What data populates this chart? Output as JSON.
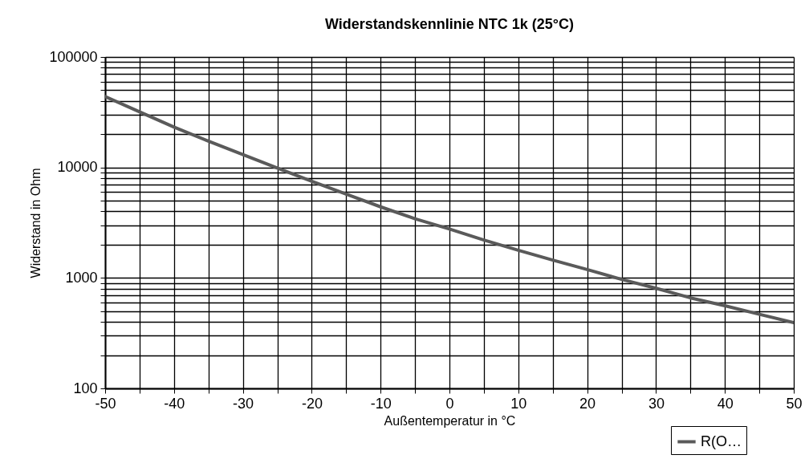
{
  "chart_data": {
    "type": "line",
    "title": "Widerstandskennlinie NTC 1k (25°C)",
    "xlabel": "Außentemperatur in °C",
    "ylabel": "Widerstand in Ohm",
    "x": [
      -50,
      -45,
      -40,
      -35,
      -30,
      -25,
      -20,
      -15,
      -10,
      -5,
      0,
      5,
      10,
      15,
      20,
      25,
      30,
      35,
      40,
      45,
      50
    ],
    "series": [
      {
        "name": "R(O…",
        "color": "#5a5a5a",
        "values": [
          43900,
          31900,
          23200,
          17300,
          13100,
          9900,
          7500,
          5730,
          4400,
          3430,
          2770,
          2200,
          1780,
          1450,
          1190,
          970,
          805,
          660,
          560,
          469,
          394
        ]
      }
    ],
    "xlim": [
      -50,
      50
    ],
    "xticks": [
      -50,
      {
        "value": -45,
        "label": null
      },
      -40,
      {
        "value": -35,
        "label": null
      },
      -30,
      {
        "value": -25,
        "label": null
      },
      -20,
      {
        "value": -15,
        "label": null
      },
      -10,
      {
        "value": -5,
        "label": null
      },
      0,
      {
        "value": 5,
        "label": null
      },
      10,
      {
        "value": 15,
        "label": null
      },
      20,
      {
        "value": 25,
        "label": null
      },
      30,
      {
        "value": 35,
        "label": null
      },
      40,
      {
        "value": 45,
        "label": null
      },
      50
    ],
    "ylim": [
      100,
      100000
    ],
    "yticks": [
      100,
      {
        "value": 200,
        "label": null
      },
      {
        "value": 300,
        "label": null
      },
      {
        "value": 400,
        "label": null
      },
      {
        "value": 500,
        "label": null
      },
      {
        "value": 600,
        "label": null
      },
      {
        "value": 700,
        "label": null
      },
      {
        "value": 800,
        "label": null
      },
      {
        "value": 900,
        "label": null
      },
      1000,
      {
        "value": 2000,
        "label": null
      },
      {
        "value": 3000,
        "label": null
      },
      {
        "value": 4000,
        "label": null
      },
      {
        "value": 5000,
        "label": null
      },
      {
        "value": 6000,
        "label": null
      },
      {
        "value": 7000,
        "label": null
      },
      {
        "value": 8000,
        "label": null
      },
      {
        "value": 9000,
        "label": null
      },
      10000,
      {
        "value": 20000,
        "label": null
      },
      {
        "value": 30000,
        "label": null
      },
      {
        "value": 40000,
        "label": null
      },
      {
        "value": 50000,
        "label": null
      },
      {
        "value": 60000,
        "label": null
      },
      {
        "value": 70000,
        "label": null
      },
      {
        "value": 80000,
        "label": null
      },
      {
        "value": 90000,
        "label": null
      },
      100000
    ],
    "log": true,
    "grid": true,
    "legend": "bottom right",
    "marker": "none",
    "line_style": "solid"
  }
}
